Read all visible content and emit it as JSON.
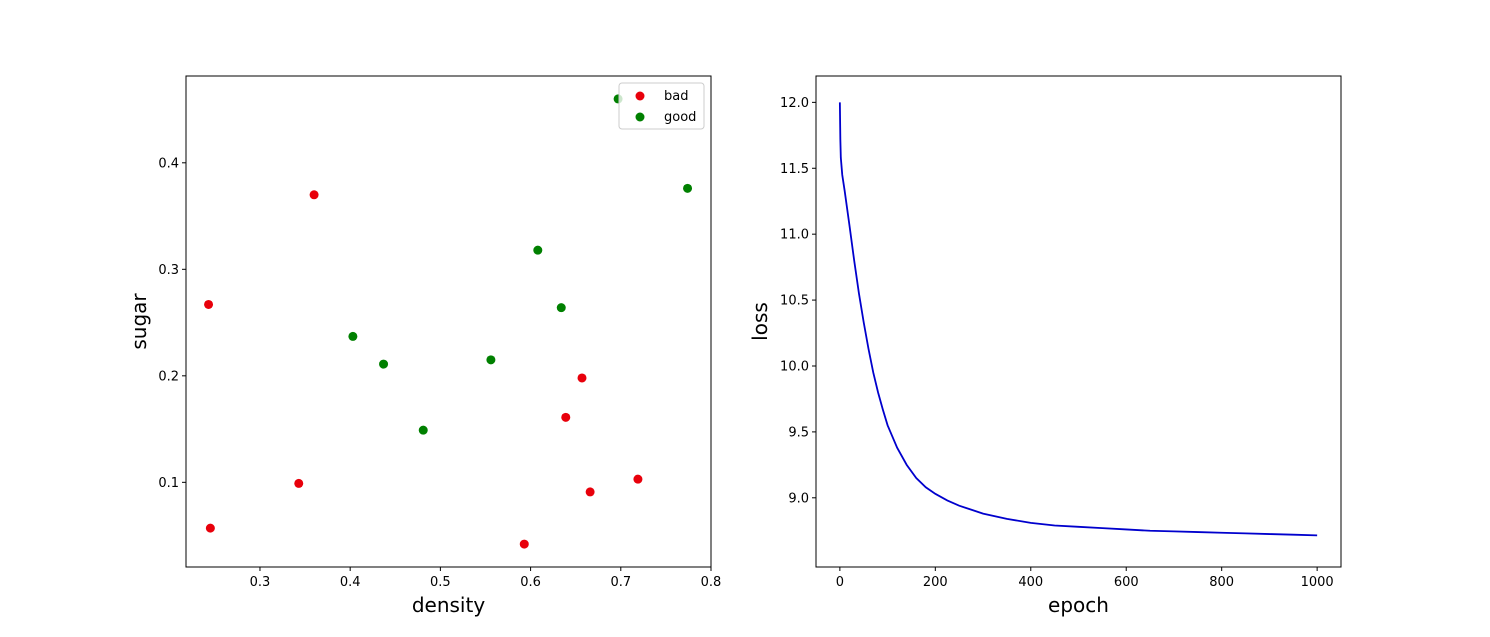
{
  "chart_data": [
    {
      "type": "scatter",
      "xlabel": "density",
      "ylabel": "sugar",
      "xlim": [
        0.218,
        0.8
      ],
      "ylim": [
        0.0205,
        0.4815
      ],
      "xticks": [
        0.3,
        0.4,
        0.5,
        0.6,
        0.7,
        0.8
      ],
      "yticks": [
        0.1,
        0.2,
        0.3,
        0.4
      ],
      "grid": false,
      "legend_position": "top-right",
      "series": [
        {
          "name": "bad",
          "color": "#e8000b",
          "points": [
            [
              0.243,
              0.267
            ],
            [
              0.245,
              0.057
            ],
            [
              0.343,
              0.099
            ],
            [
              0.36,
              0.37
            ],
            [
              0.593,
              0.042
            ],
            [
              0.639,
              0.161
            ],
            [
              0.657,
              0.198
            ],
            [
              0.666,
              0.091
            ],
            [
              0.719,
              0.103
            ]
          ]
        },
        {
          "name": "good",
          "color": "#008000",
          "points": [
            [
              0.697,
              0.46
            ],
            [
              0.774,
              0.376
            ],
            [
              0.634,
              0.264
            ],
            [
              0.608,
              0.318
            ],
            [
              0.556,
              0.215
            ],
            [
              0.403,
              0.237
            ],
            [
              0.481,
              0.149
            ],
            [
              0.437,
              0.211
            ]
          ]
        }
      ]
    },
    {
      "type": "line",
      "xlabel": "epoch",
      "ylabel": "loss",
      "xlim": [
        -50,
        1050
      ],
      "ylim": [
        8.475,
        12.2
      ],
      "xticks": [
        0,
        200,
        400,
        600,
        800,
        1000
      ],
      "yticks": [
        9.0,
        9.5,
        10.0,
        10.5,
        11.0,
        11.5,
        12.0
      ],
      "grid": false,
      "series": [
        {
          "color": "#0000cd",
          "x": [
            0,
            1,
            2,
            5,
            10,
            20,
            30,
            40,
            50,
            60,
            70,
            80,
            90,
            100,
            120,
            140,
            160,
            180,
            200,
            225,
            250,
            275,
            300,
            350,
            400,
            450,
            500,
            550,
            600,
            650,
            700,
            750,
            800,
            850,
            900,
            950,
            1000
          ],
          "y": [
            12.0,
            11.72,
            11.58,
            11.45,
            11.33,
            11.07,
            10.8,
            10.55,
            10.33,
            10.13,
            9.95,
            9.8,
            9.67,
            9.55,
            9.38,
            9.25,
            9.15,
            9.08,
            9.03,
            8.98,
            8.94,
            8.91,
            8.88,
            8.84,
            8.81,
            8.79,
            8.78,
            8.77,
            8.76,
            8.75,
            8.745,
            8.74,
            8.735,
            8.73,
            8.725,
            8.72,
            8.715
          ]
        }
      ]
    }
  ]
}
